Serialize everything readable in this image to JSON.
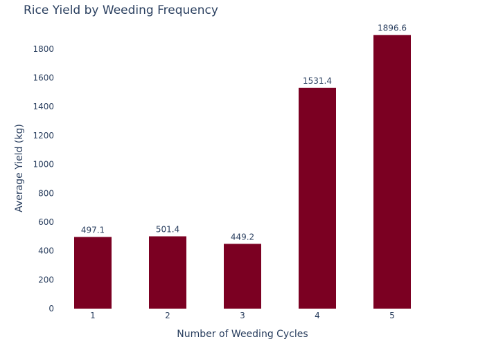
{
  "chart_data": {
    "type": "bar",
    "title": "Rice Yield by Weeding Frequency",
    "xlabel": "Number of Weeding Cycles",
    "ylabel": "Average Yield (kg)",
    "categories": [
      "1",
      "2",
      "3",
      "4",
      "5"
    ],
    "values": [
      497.1,
      501.4,
      449.2,
      1531.4,
      1896.6
    ],
    "data_labels": [
      "497.1",
      "501.4",
      "449.2",
      "1531.4",
      "1896.6"
    ],
    "y_ticks": [
      0,
      200,
      400,
      600,
      800,
      1000,
      1200,
      1400,
      1600,
      1800
    ],
    "ylim": [
      0,
      1996
    ],
    "grid": false,
    "legend": "none",
    "bar_color": "#7b0022"
  }
}
